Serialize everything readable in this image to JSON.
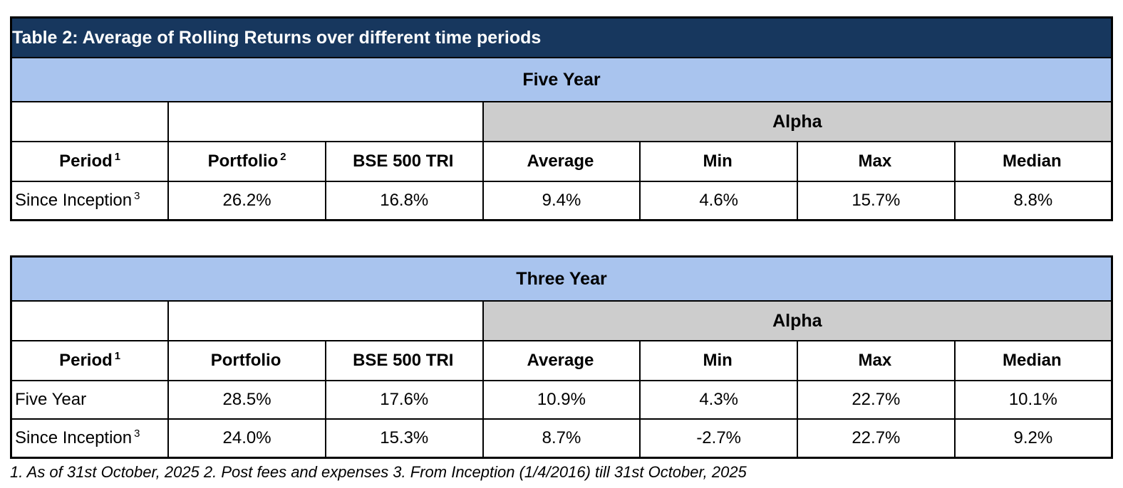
{
  "title": "Table 2: Average of Rolling Returns over different time periods",
  "colors": {
    "title_bar_background": "#17375E",
    "title_text": "#FFFFFF",
    "band_background": "#A9C4EE",
    "alpha_background": "#CDCDCD",
    "border": "#000000"
  },
  "tables": [
    {
      "band_label": "Five Year",
      "alpha_label": "Alpha",
      "headers": [
        {
          "text": "Period",
          "sup": "1"
        },
        {
          "text": "Portfolio",
          "sup": "2"
        },
        {
          "text": "BSE 500 TRI",
          "sup": ""
        },
        {
          "text": "Average",
          "sup": ""
        },
        {
          "text": "Min",
          "sup": ""
        },
        {
          "text": "Max",
          "sup": ""
        },
        {
          "text": "Median",
          "sup": ""
        }
      ],
      "rows": [
        {
          "period": "Since Inception",
          "period_sup": "3",
          "values": [
            "26.2%",
            "16.8%",
            "9.4%",
            "4.6%",
            "15.7%",
            "8.8%"
          ]
        }
      ]
    },
    {
      "band_label": "Three Year",
      "alpha_label": "Alpha",
      "headers": [
        {
          "text": "Period",
          "sup": "1"
        },
        {
          "text": "Portfolio",
          "sup": ""
        },
        {
          "text": "BSE 500 TRI",
          "sup": ""
        },
        {
          "text": "Average",
          "sup": ""
        },
        {
          "text": "Min",
          "sup": ""
        },
        {
          "text": "Max",
          "sup": ""
        },
        {
          "text": "Median",
          "sup": ""
        }
      ],
      "rows": [
        {
          "period": "Five Year",
          "period_sup": "",
          "values": [
            "28.5%",
            "17.6%",
            "10.9%",
            "4.3%",
            "22.7%",
            "10.1%"
          ]
        },
        {
          "period": "Since Inception",
          "period_sup": "3",
          "values": [
            "24.0%",
            "15.3%",
            "8.7%",
            "-2.7%",
            "22.7%",
            "9.2%"
          ]
        }
      ]
    }
  ],
  "footnote": "1. As of 31st October, 2025 2. Post fees and expenses 3. From Inception (1/4/2016) till 31st October, 2025"
}
